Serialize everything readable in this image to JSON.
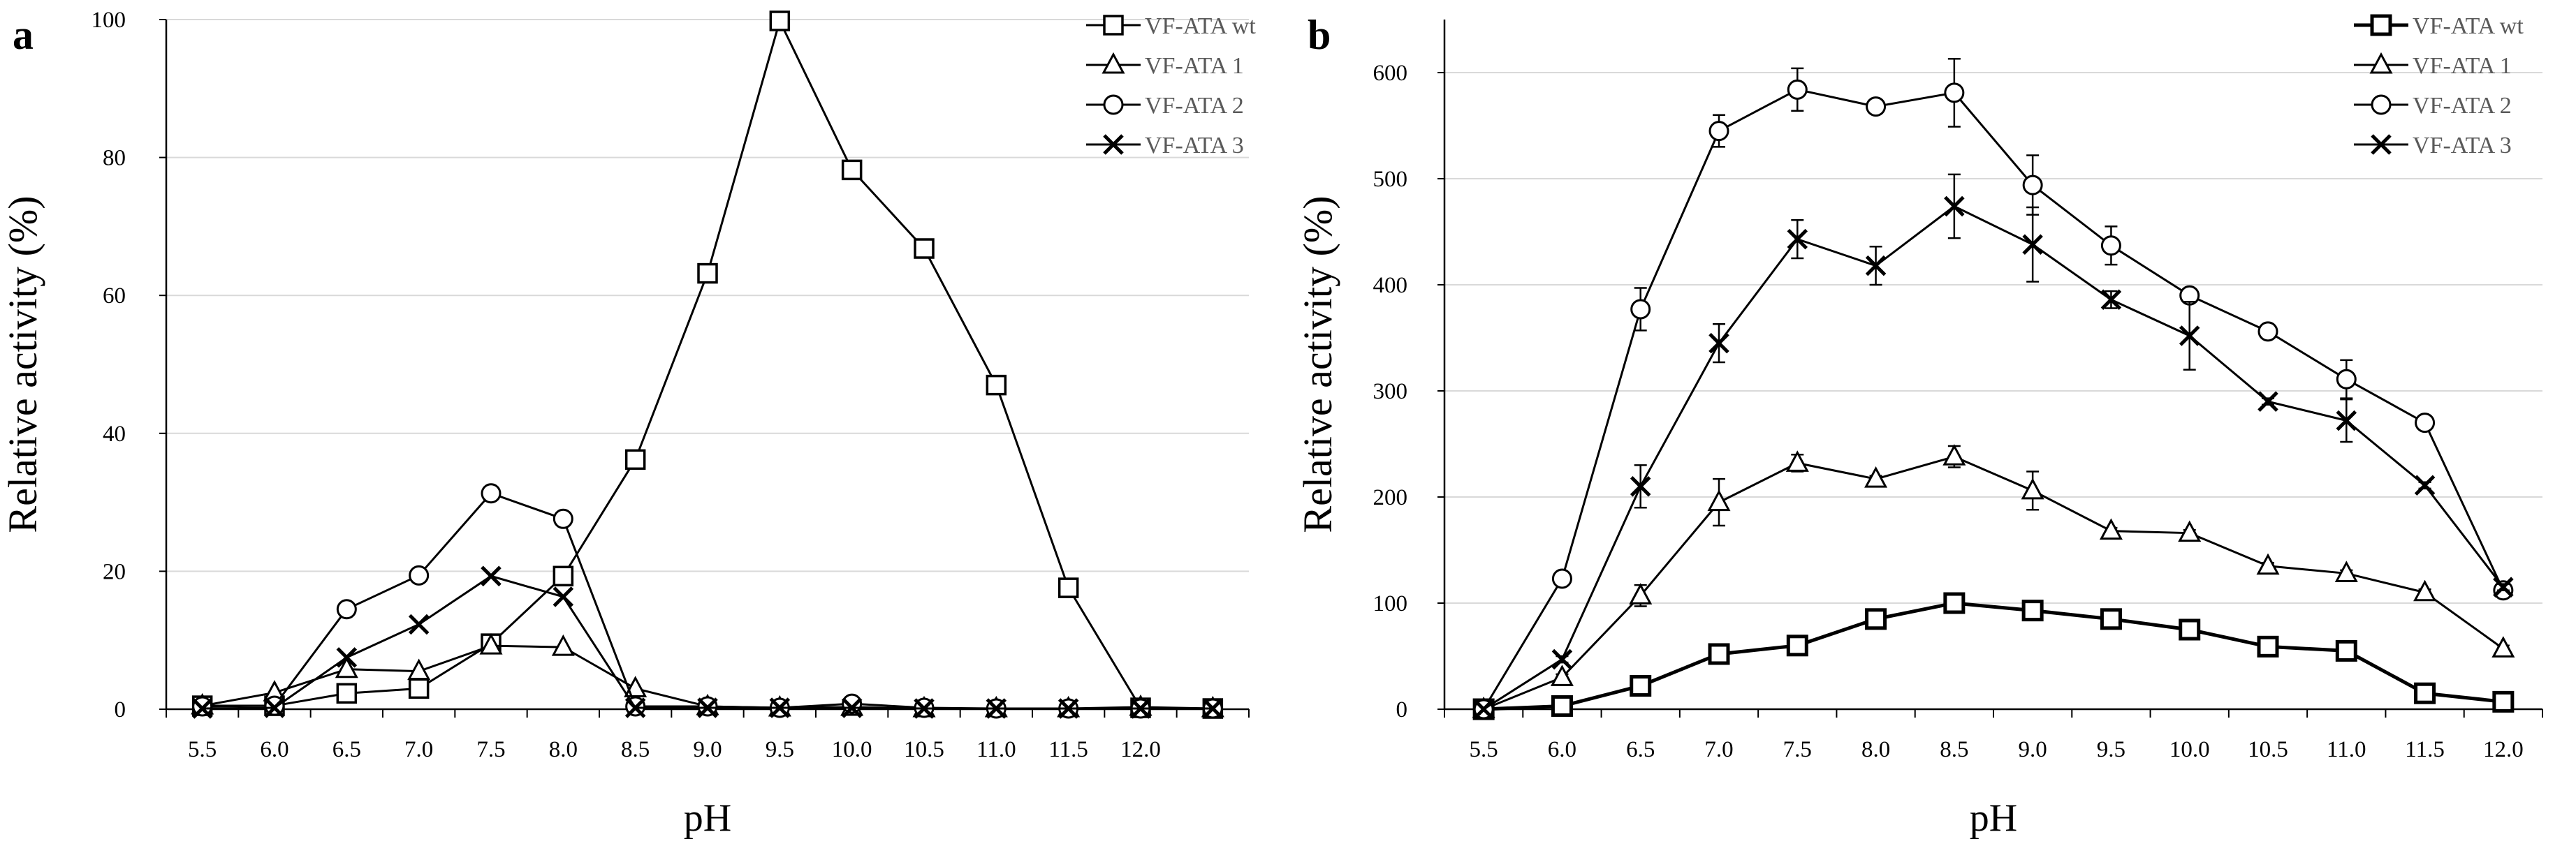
{
  "chart_data": [
    {
      "panel": "a",
      "type": "line",
      "xlabel": "pH",
      "ylabel": "Relative activity (%)",
      "ylim": [
        0,
        100
      ],
      "yticks": [
        0,
        20,
        40,
        60,
        80,
        100
      ],
      "xtick_labels": [
        "5.5",
        "6.0",
        "6.5",
        "7.0",
        "7.5",
        "8.0",
        "8.5",
        "9.0",
        "9.5",
        "10.0",
        "10.5",
        "11.0",
        "11.5",
        "12.0",
        ""
      ],
      "x": [
        5.5,
        6.0,
        6.5,
        7.0,
        7.5,
        8.0,
        8.5,
        9.0,
        9.5,
        10.0,
        10.5,
        11.0,
        11.5,
        12.0,
        12.5
      ],
      "legend": "top-right",
      "grid": "horizontal",
      "series": [
        {
          "name": "VF-ATA wt",
          "marker": "square",
          "values": [
            0.5,
            0.5,
            2.3,
            3.0,
            9.5,
            19.3,
            36.2,
            63.2,
            99.8,
            78.2,
            66.8,
            47.0,
            17.6,
            0.2,
            0.1
          ],
          "errors": [
            0.3,
            0.3,
            0.3,
            0.3,
            0.5,
            0.5,
            0.5,
            0.5,
            2.2,
            0.5,
            1.0,
            0.5,
            0.5,
            0.2,
            0.2
          ]
        },
        {
          "name": "VF-ATA 1",
          "marker": "triangle",
          "values": [
            0.5,
            2.4,
            5.8,
            5.5,
            9.2,
            9.0,
            3.0,
            0.4,
            0.2,
            0.3,
            0.1,
            0.1,
            0.1,
            0.3,
            0.1
          ]
        },
        {
          "name": "VF-ATA 2",
          "marker": "circle",
          "values": [
            0.4,
            0.5,
            14.5,
            19.4,
            31.3,
            27.6,
            0.4,
            0.4,
            0.2,
            0.8,
            0.2,
            0.1,
            0.1,
            0.1,
            0.1
          ]
        },
        {
          "name": "VF-ATA 3",
          "marker": "cross",
          "values": [
            0.1,
            0.2,
            7.5,
            12.3,
            19.3,
            16.3,
            0.2,
            0.2,
            0.2,
            0.2,
            0.1,
            0.1,
            0.1,
            0.1,
            0.1
          ]
        }
      ]
    },
    {
      "panel": "b",
      "type": "line",
      "xlabel": "pH",
      "ylabel": "Relative activity (%)",
      "ylim": [
        0,
        650
      ],
      "yticks": [
        0,
        100,
        200,
        300,
        400,
        500,
        600
      ],
      "xtick_labels": [
        "5.5",
        "6.0",
        "6.5",
        "7.0",
        "7.5",
        "8.0",
        "8.5",
        "9.0",
        "9.5",
        "10.0",
        "10.5",
        "11.0",
        "11.5",
        "12.0"
      ],
      "x": [
        5.5,
        6.0,
        6.5,
        7.0,
        7.5,
        8.0,
        8.5,
        9.0,
        9.5,
        10.0,
        10.5,
        11.0,
        11.5,
        12.0
      ],
      "legend": "top-right",
      "grid": "horizontal",
      "series": [
        {
          "name": "VF-ATA wt",
          "marker": "square",
          "values": [
            0,
            3,
            22,
            52,
            60,
            85,
            100,
            93,
            85,
            75,
            59,
            55,
            15,
            7
          ],
          "errors": [
            0,
            0,
            5,
            3,
            3,
            3,
            3,
            3,
            3,
            3,
            3,
            3,
            3,
            2
          ]
        },
        {
          "name": "VF-ATA 1",
          "marker": "triangle",
          "values": [
            0,
            30,
            107,
            195,
            232,
            217,
            238,
            206,
            168,
            166,
            135,
            128,
            110,
            57
          ],
          "errors": [
            0,
            3,
            10,
            22,
            8,
            3,
            10,
            18,
            3,
            3,
            3,
            3,
            3,
            3
          ]
        },
        {
          "name": "VF-ATA 2",
          "marker": "circle",
          "values": [
            0,
            123,
            377,
            545,
            584,
            568,
            581,
            494,
            437,
            390,
            356,
            311,
            270,
            112
          ],
          "errors": [
            0,
            3,
            20,
            15,
            20,
            3,
            32,
            28,
            18,
            3,
            3,
            18,
            3,
            3
          ]
        },
        {
          "name": "VF-ATA 3",
          "marker": "cross",
          "values": [
            0,
            47,
            210,
            345,
            443,
            418,
            474,
            438,
            386,
            352,
            290,
            272,
            211,
            115
          ],
          "errors": [
            0,
            3,
            20,
            18,
            18,
            18,
            30,
            35,
            8,
            32,
            3,
            20,
            3,
            3
          ]
        }
      ]
    }
  ]
}
